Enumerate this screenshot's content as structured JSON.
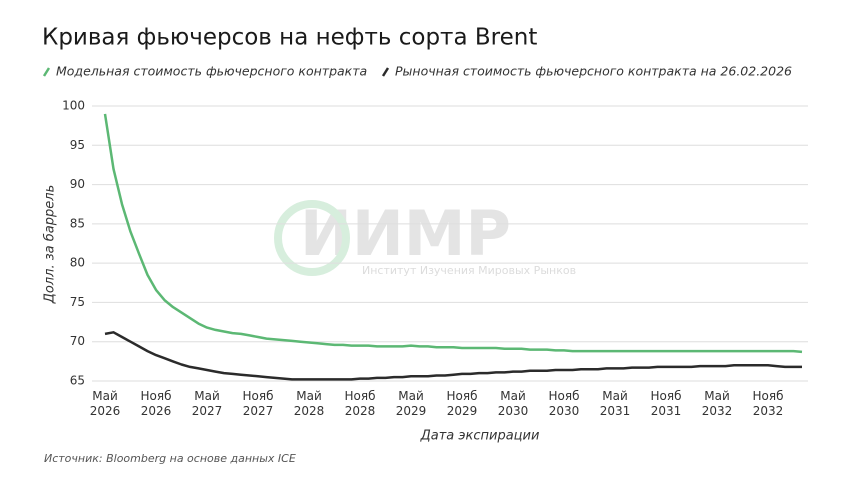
{
  "chart_data": {
    "type": "line",
    "title": "Кривая фьючерсов на нефть сорта Brent",
    "y_label": "Долл. за баррель",
    "x_label": "Дата экспирации",
    "source": "Источник: Bloomberg на основе данных ICE",
    "watermark": {
      "title": "ИИМР",
      "subtitle": "Институт Изучения Мировых Рынков"
    },
    "ylim": [
      65,
      100
    ],
    "yticks": [
      65,
      70,
      75,
      80,
      85,
      90,
      95,
      100
    ],
    "grid": true,
    "categories": [
      "Май\n2026",
      null,
      null,
      null,
      null,
      null,
      "Нояб\n2026",
      null,
      null,
      null,
      null,
      null,
      "Май\n2027",
      null,
      null,
      null,
      null,
      null,
      "Нояб\n2027",
      null,
      null,
      null,
      null,
      null,
      "Май\n2028",
      null,
      null,
      null,
      null,
      null,
      "Нояб\n2028",
      null,
      null,
      null,
      null,
      null,
      "Май\n2029",
      null,
      null,
      null,
      null,
      null,
      "Нояб\n2029",
      null,
      null,
      null,
      null,
      null,
      "Май\n2030",
      null,
      null,
      null,
      null,
      null,
      "Нояб\n2030",
      null,
      null,
      null,
      null,
      null,
      "Май\n2031",
      null,
      null,
      null,
      null,
      null,
      "Нояб\n2031",
      null,
      null,
      null,
      null,
      null,
      "Май\n2032",
      null,
      null,
      null,
      null,
      null,
      "Нояб\n2032",
      null,
      null,
      null,
      null
    ],
    "series": [
      {
        "name": "Модельная стоимость фьючерсного контракта",
        "color": "#5cb874",
        "values": [
          99,
          92,
          87.5,
          84,
          81.2,
          78.5,
          76.6,
          75.3,
          74.4,
          73.7,
          73.0,
          72.3,
          71.8,
          71.5,
          71.3,
          71.1,
          71.0,
          70.8,
          70.6,
          70.4,
          70.3,
          70.2,
          70.1,
          70.0,
          69.9,
          69.8,
          69.7,
          69.6,
          69.6,
          69.5,
          69.5,
          69.5,
          69.4,
          69.4,
          69.4,
          69.4,
          69.5,
          69.4,
          69.4,
          69.3,
          69.3,
          69.3,
          69.2,
          69.2,
          69.2,
          69.2,
          69.2,
          69.1,
          69.1,
          69.1,
          69.0,
          69.0,
          69.0,
          68.9,
          68.9,
          68.8,
          68.8,
          68.8,
          68.8,
          68.8,
          68.8,
          68.8,
          68.8,
          68.8,
          68.8,
          68.8,
          68.8,
          68.8,
          68.8,
          68.8,
          68.8,
          68.8,
          68.8,
          68.8,
          68.8,
          68.8,
          68.8,
          68.8,
          68.8,
          68.8,
          68.8,
          68.8,
          68.7
        ]
      },
      {
        "name": "Рыночная стоимость фьючерсного контракта на 26.02.2026",
        "color": "#2b2b2b",
        "values": [
          71.0,
          71.2,
          70.6,
          70.0,
          69.4,
          68.8,
          68.3,
          67.9,
          67.5,
          67.1,
          66.8,
          66.6,
          66.4,
          66.2,
          66.0,
          65.9,
          65.8,
          65.7,
          65.6,
          65.5,
          65.4,
          65.3,
          65.2,
          65.2,
          65.2,
          65.2,
          65.2,
          65.2,
          65.2,
          65.2,
          65.3,
          65.3,
          65.4,
          65.4,
          65.5,
          65.5,
          65.6,
          65.6,
          65.6,
          65.7,
          65.7,
          65.8,
          65.9,
          65.9,
          66.0,
          66.0,
          66.1,
          66.1,
          66.2,
          66.2,
          66.3,
          66.3,
          66.3,
          66.4,
          66.4,
          66.4,
          66.5,
          66.5,
          66.5,
          66.6,
          66.6,
          66.6,
          66.7,
          66.7,
          66.7,
          66.8,
          66.8,
          66.8,
          66.8,
          66.8,
          66.9,
          66.9,
          66.9,
          66.9,
          67.0,
          67.0,
          67.0,
          67.0,
          67.0,
          66.9,
          66.8,
          66.8,
          66.8
        ]
      }
    ]
  }
}
